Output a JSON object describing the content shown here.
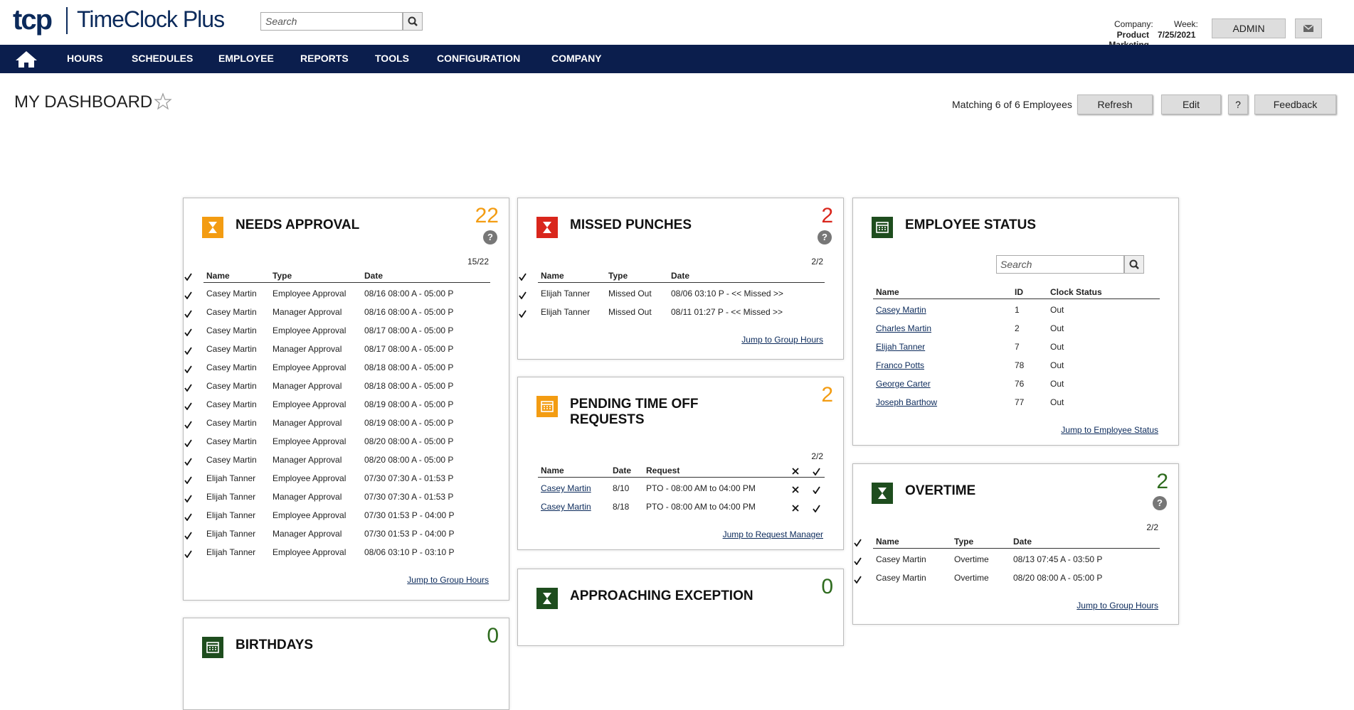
{
  "header": {
    "logo": "tcp",
    "brand": "TimeClock Plus",
    "search_placeholder": "Search",
    "company_label": "Company:",
    "company": "Product Marketing",
    "week_label": "Week:",
    "week": "7/25/2021",
    "user": "ADMIN"
  },
  "nav": [
    "HOURS",
    "SCHEDULES",
    "EMPLOYEE",
    "REPORTS",
    "TOOLS",
    "CONFIGURATION",
    "COMPANY"
  ],
  "dashboard": {
    "title": "MY DASHBOARD",
    "matching": "Matching 6 of 6 Employees",
    "buttons": [
      "Refresh",
      "Edit",
      "?",
      "Feedback"
    ]
  },
  "panels": {
    "needs_approval": {
      "title": "NEEDS APPROVAL",
      "count": 22,
      "color": "#f39c12",
      "ratio": "15/22",
      "columns": [
        "Name",
        "Type",
        "Date"
      ],
      "rows": [
        [
          "Casey Martin",
          "Employee Approval",
          "08/16 08:00 A - 05:00 P"
        ],
        [
          "Casey Martin",
          "Manager Approval",
          "08/16 08:00 A - 05:00 P"
        ],
        [
          "Casey Martin",
          "Employee Approval",
          "08/17 08:00 A - 05:00 P"
        ],
        [
          "Casey Martin",
          "Manager Approval",
          "08/17 08:00 A - 05:00 P"
        ],
        [
          "Casey Martin",
          "Employee Approval",
          "08/18 08:00 A - 05:00 P"
        ],
        [
          "Casey Martin",
          "Manager Approval",
          "08/18 08:00 A - 05:00 P"
        ],
        [
          "Casey Martin",
          "Employee Approval",
          "08/19 08:00 A - 05:00 P"
        ],
        [
          "Casey Martin",
          "Manager Approval",
          "08/19 08:00 A - 05:00 P"
        ],
        [
          "Casey Martin",
          "Employee Approval",
          "08/20 08:00 A - 05:00 P"
        ],
        [
          "Casey Martin",
          "Manager Approval",
          "08/20 08:00 A - 05:00 P"
        ],
        [
          "Elijah Tanner",
          "Employee Approval",
          "07/30 07:30 A - 01:53 P"
        ],
        [
          "Elijah Tanner",
          "Manager Approval",
          "07/30 07:30 A - 01:53 P"
        ],
        [
          "Elijah Tanner",
          "Employee Approval",
          "07/30 01:53 P - 04:00 P"
        ],
        [
          "Elijah Tanner",
          "Manager Approval",
          "07/30 01:53 P - 04:00 P"
        ],
        [
          "Elijah Tanner",
          "Employee Approval",
          "08/06 03:10 P - 03:10 P"
        ]
      ],
      "link": "Jump to Group Hours"
    },
    "missed_punches": {
      "title": "MISSED PUNCHES",
      "count": 2,
      "color": "#d9261c",
      "ratio": "2/2",
      "columns": [
        "Name",
        "Type",
        "Date"
      ],
      "rows": [
        [
          "Elijah Tanner",
          "Missed Out",
          "08/06 03:10 P - << Missed >>"
        ],
        [
          "Elijah Tanner",
          "Missed Out",
          "08/11 01:27 P - << Missed >>"
        ]
      ],
      "link": "Jump to Group Hours"
    },
    "pending_time_off": {
      "title": "PENDING TIME OFF REQUESTS",
      "count": 2,
      "color": "#f39c12",
      "ratio": "2/2",
      "columns": [
        "Name",
        "Date",
        "Request"
      ],
      "rows": [
        [
          "Casey Martin",
          "8/10",
          "PTO - 08:00 AM to 04:00 PM"
        ],
        [
          "Casey Martin",
          "8/18",
          "PTO - 08:00 AM to 04:00 PM"
        ]
      ],
      "link": "Jump to Request Manager"
    },
    "approaching_exception": {
      "title": "APPROACHING EXCEPTION",
      "count": 0,
      "color": "#1e4d1e"
    },
    "birthdays": {
      "title": "BIRTHDAYS",
      "count": 0,
      "color": "#1e4d1e"
    },
    "employee_status": {
      "title": "EMPLOYEE STATUS",
      "color": "#1e4d1e",
      "search_placeholder": "Search",
      "columns": [
        "Name",
        "ID",
        "Clock Status"
      ],
      "rows": [
        [
          "Casey Martin",
          "1",
          "Out"
        ],
        [
          "Charles Martin",
          "2",
          "Out"
        ],
        [
          "Elijah Tanner",
          "7",
          "Out"
        ],
        [
          "Franco Potts",
          "78",
          "Out"
        ],
        [
          "George Carter",
          "76",
          "Out"
        ],
        [
          "Joseph Barthow",
          "77",
          "Out"
        ]
      ],
      "link": "Jump to Employee Status"
    },
    "overtime": {
      "title": "OVERTIME",
      "count": 2,
      "color": "#1e4d1e",
      "ratio": "2/2",
      "columns": [
        "Name",
        "Type",
        "Date"
      ],
      "rows": [
        [
          "Casey Martin",
          "Overtime",
          "08/13 07:45 A - 03:50 P"
        ],
        [
          "Casey Martin",
          "Overtime",
          "08/20 08:00 A - 05:00 P"
        ]
      ],
      "link": "Jump to Group Hours"
    }
  }
}
